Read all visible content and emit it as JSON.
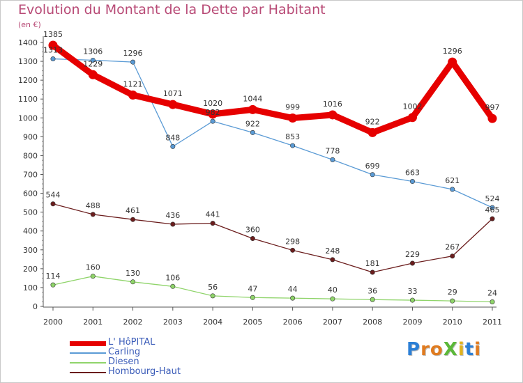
{
  "title": "Evolution du Montant de la Dette par Habitant",
  "subtitle": "(en €)",
  "logo": {
    "text": "ProXiti",
    "letters": [
      "P",
      "r",
      "o",
      "X",
      "i",
      "t",
      "i"
    ],
    "colors": [
      "#2b7fd6",
      "#e07b1f",
      "#e07b1f",
      "#5cb83a",
      "#e0b21f",
      "#2b7fd6",
      "#e07b1f"
    ]
  },
  "chart_data": {
    "type": "line",
    "x": [
      "2000",
      "2001",
      "2002",
      "2003",
      "2004",
      "2005",
      "2006",
      "2007",
      "2008",
      "2009",
      "2010",
      "2011"
    ],
    "ylim": [
      0,
      1400
    ],
    "yticks": [
      0,
      100,
      200,
      300,
      400,
      500,
      600,
      700,
      800,
      900,
      1000,
      1100,
      1200,
      1300,
      1400
    ],
    "grid": false,
    "legend_position": "bottom-left",
    "series": [
      {
        "name": "L' HôPITAL",
        "color": "#e60000",
        "values": [
          1385,
          1229,
          1121,
          1071,
          1020,
          1044,
          999,
          1016,
          922,
          1002,
          1296,
          997
        ],
        "labels": [
          "1385",
          "1229",
          "1121",
          "1071",
          "1020",
          "1044",
          "999",
          "1016",
          "922",
          "1002",
          "1296",
          "997"
        ]
      },
      {
        "name": "Carling",
        "color": "#5b9bd5",
        "values": [
          1313,
          1306,
          1296,
          848,
          982,
          922,
          853,
          778,
          699,
          663,
          621,
          524
        ],
        "labels": [
          "1313",
          "1306",
          "1296",
          "848",
          "982",
          "922",
          "853",
          "778",
          "699",
          "663",
          "621",
          "524"
        ]
      },
      {
        "name": "Diesen",
        "color": "#8fd46a",
        "values": [
          114,
          160,
          130,
          106,
          56,
          47,
          44,
          40,
          36,
          33,
          29,
          24
        ],
        "labels": [
          "114",
          "160",
          "130",
          "106",
          "56",
          "47",
          "44",
          "40",
          "36",
          "33",
          "29",
          "24"
        ]
      },
      {
        "name": "Hombourg-Haut",
        "color": "#6b1d1d",
        "values": [
          544,
          488,
          461,
          436,
          441,
          360,
          298,
          248,
          181,
          229,
          267,
          465
        ],
        "labels": [
          "544",
          "488",
          "461",
          "436",
          "441",
          "360",
          "298",
          "248",
          "181",
          "229",
          "267",
          "465"
        ]
      }
    ]
  }
}
